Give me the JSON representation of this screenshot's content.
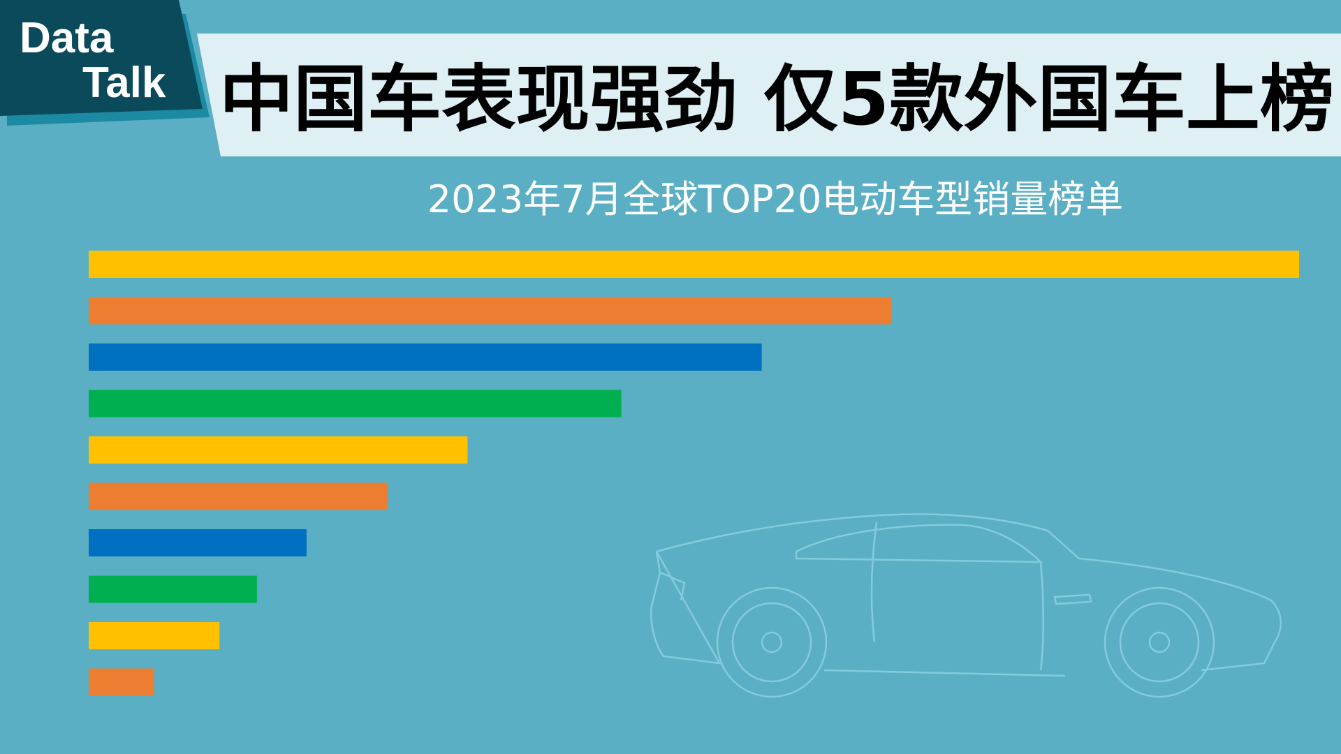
{
  "badge": {
    "line1": "Data",
    "line2": "Talk"
  },
  "chart_data": {
    "type": "bar",
    "orientation": "horizontal",
    "title": "中国车表现强劲 仅5款外国车上榜",
    "subtitle": "2023年7月全球TOP20电动车型销量榜单",
    "values": [
      100,
      66.3,
      55.6,
      44.0,
      31.3,
      24.7,
      18.0,
      13.9,
      10.8,
      5.4
    ],
    "colors": [
      "#ffc000",
      "#ed7d31",
      "#0070c0",
      "#00b050",
      "#ffc000",
      "#ed7d31",
      "#0070c0",
      "#00b050",
      "#ffc000",
      "#ed7d31"
    ],
    "xlim": [
      0,
      100
    ]
  }
}
